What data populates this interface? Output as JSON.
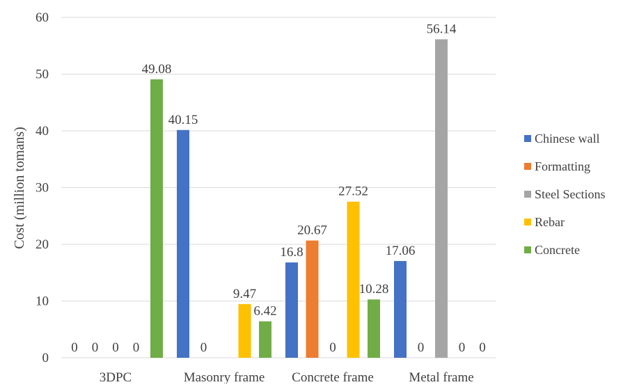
{
  "chart_data": {
    "type": "bar",
    "title": "",
    "xlabel": "",
    "ylabel": "Cost (million tomans)",
    "ylim": [
      0,
      60
    ],
    "yticks": [
      0,
      10,
      20,
      30,
      40,
      50,
      60
    ],
    "grid": true,
    "legend_position": "right",
    "categories": [
      "3DPC",
      "Masonry frame",
      "Concrete frame",
      "Metal frame"
    ],
    "series": [
      {
        "name": "Chinese wall",
        "color": "#4472c4",
        "values": [
          0,
          40.15,
          16.8,
          17.06
        ],
        "labels": [
          "0",
          "40.15",
          "16.8",
          "17.06"
        ]
      },
      {
        "name": "Formatting",
        "color": "#ed7d31",
        "values": [
          0,
          0,
          20.67,
          0
        ],
        "labels": [
          "0",
          "0",
          "20.67",
          "0"
        ]
      },
      {
        "name": "Steel Sections",
        "color": "#a5a5a5",
        "values": [
          0,
          0,
          0,
          56.14
        ],
        "labels": [
          "0",
          "",
          "0",
          "56.14"
        ]
      },
      {
        "name": "Rebar",
        "color": "#ffc000",
        "values": [
          0,
          9.47,
          27.52,
          0
        ],
        "labels": [
          "0",
          "9.47",
          "27.52",
          "0"
        ]
      },
      {
        "name": "Concrete",
        "color": "#70ad47",
        "values": [
          49.08,
          6.42,
          10.28,
          0
        ],
        "labels": [
          "49.08",
          "6.42",
          "10.28",
          "0"
        ]
      }
    ]
  }
}
